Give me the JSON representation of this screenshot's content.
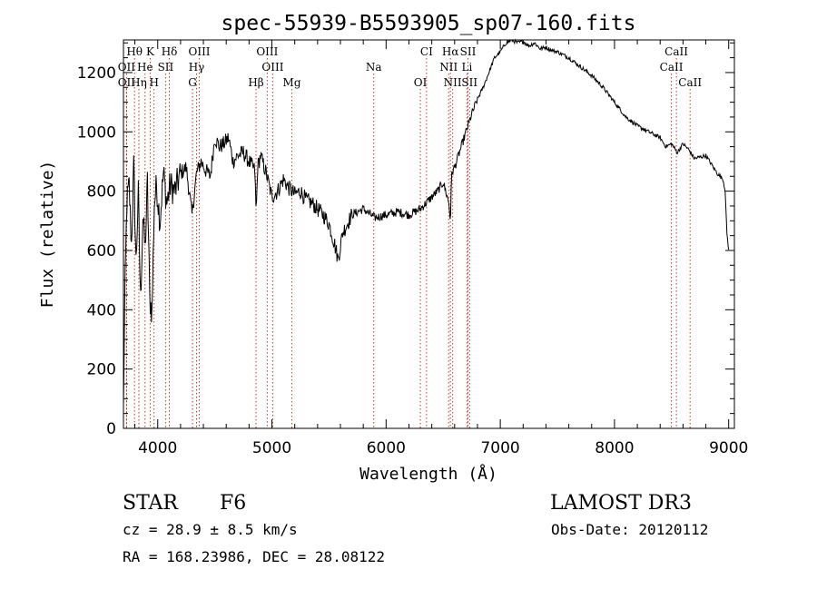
{
  "chart_data": {
    "type": "line",
    "title": "spec-55939-B5593905_sp07-160.fits",
    "xlabel": "Wavelength (Å)",
    "ylabel": "Flux (relative)",
    "xlim": [
      3700,
      9050
    ],
    "ylim": [
      0,
      1310
    ],
    "xticks": [
      4000,
      5000,
      6000,
      7000,
      8000,
      9000
    ],
    "yticks": [
      0,
      200,
      400,
      600,
      800,
      1000,
      1200
    ],
    "series": [
      {
        "name": "spectrum",
        "x": [
          3700,
          3710,
          3730,
          3750,
          3770,
          3790,
          3810,
          3830,
          3850,
          3870,
          3890,
          3910,
          3930,
          3950,
          3970,
          3990,
          4020,
          4050,
          4080,
          4110,
          4150,
          4200,
          4250,
          4300,
          4340,
          4380,
          4420,
          4460,
          4500,
          4540,
          4580,
          4620,
          4660,
          4700,
          4750,
          4800,
          4850,
          4862,
          4875,
          4900,
          4950,
          5000,
          5050,
          5100,
          5150,
          5200,
          5250,
          5300,
          5350,
          5400,
          5450,
          5500,
          5550,
          5580,
          5620,
          5700,
          5800,
          5900,
          6000,
          6100,
          6200,
          6300,
          6400,
          6450,
          6500,
          6550,
          6563,
          6575,
          6600,
          6650,
          6700,
          6750,
          6800,
          6850,
          6900,
          6950,
          7000,
          7050,
          7100,
          7150,
          7200,
          7250,
          7300,
          7350,
          7400,
          7450,
          7500,
          7600,
          7700,
          7800,
          7900,
          8000,
          8100,
          8200,
          8300,
          8400,
          8450,
          8500,
          8550,
          8600,
          8650,
          8700,
          8800,
          8900,
          8950,
          8970,
          8985,
          9000
        ],
        "y": [
          60,
          400,
          760,
          820,
          620,
          880,
          560,
          790,
          430,
          720,
          600,
          830,
          440,
          390,
          760,
          820,
          700,
          860,
          760,
          820,
          800,
          860,
          880,
          720,
          860,
          900,
          870,
          850,
          980,
          950,
          960,
          980,
          900,
          920,
          930,
          900,
          870,
          720,
          880,
          920,
          860,
          780,
          800,
          840,
          810,
          790,
          800,
          770,
          760,
          740,
          720,
          690,
          620,
          570,
          660,
          720,
          740,
          710,
          720,
          730,
          720,
          740,
          780,
          800,
          830,
          760,
          700,
          860,
          880,
          940,
          1000,
          1060,
          1110,
          1150,
          1200,
          1250,
          1270,
          1300,
          1310,
          1300,
          1305,
          1290,
          1300,
          1280,
          1285,
          1275,
          1270,
          1250,
          1220,
          1190,
          1150,
          1100,
          1050,
          1020,
          1000,
          980,
          950,
          960,
          930,
          960,
          940,
          910,
          920,
          860,
          840,
          800,
          650,
          600
        ]
      }
    ],
    "lines": [
      {
        "label": "Hθ",
        "x": 3797,
        "row": 0
      },
      {
        "label": "K",
        "x": 3934,
        "row": 0
      },
      {
        "label": "Hδ",
        "x": 4102,
        "row": 0
      },
      {
        "label": "OIII",
        "x": 4364,
        "row": 0
      },
      {
        "label": "OIII",
        "x": 4959,
        "row": 0
      },
      {
        "label": "CI",
        "x": 6354,
        "row": 0
      },
      {
        "label": "Hα",
        "x": 6563,
        "row": 0
      },
      {
        "label": "SII",
        "x": 6717,
        "row": 0
      },
      {
        "label": "CaII",
        "x": 8542,
        "row": 0
      },
      {
        "label": "OII",
        "x": 3727,
        "row": 1
      },
      {
        "label": "He",
        "x": 3889,
        "row": 1
      },
      {
        "label": "SII",
        "x": 4069,
        "row": 1
      },
      {
        "label": "Hγ",
        "x": 4340,
        "row": 1
      },
      {
        "label": "OIII",
        "x": 5007,
        "row": 1
      },
      {
        "label": "Na",
        "x": 5892,
        "row": 1
      },
      {
        "label": "NII",
        "x": 6548,
        "row": 1
      },
      {
        "label": "Li",
        "x": 6708,
        "row": 1
      },
      {
        "label": "CaII",
        "x": 8498,
        "row": 1
      },
      {
        "label": "OII",
        "x": 3727,
        "row": 2
      },
      {
        "label": "Hη",
        "x": 3835,
        "row": 2
      },
      {
        "label": "H",
        "x": 3968,
        "row": 2
      },
      {
        "label": "G",
        "x": 4305,
        "row": 2
      },
      {
        "label": "Hβ",
        "x": 4861,
        "row": 2
      },
      {
        "label": "Mg",
        "x": 5175,
        "row": 2
      },
      {
        "label": "OI",
        "x": 6300,
        "row": 2
      },
      {
        "label": "NII",
        "x": 6583,
        "row": 2
      },
      {
        "label": "SII",
        "x": 6731,
        "row": 2
      },
      {
        "label": "CaII",
        "x": 8662,
        "row": 2
      }
    ]
  },
  "info": {
    "class": "STAR",
    "subclass": "F6",
    "survey": "LAMOST DR3",
    "cz": "cz = 28.9 ± 8.5 km/s",
    "obs_date": "Obs-Date: 20120112",
    "radec": "RA = 168.23986, DEC =  28.08122"
  }
}
